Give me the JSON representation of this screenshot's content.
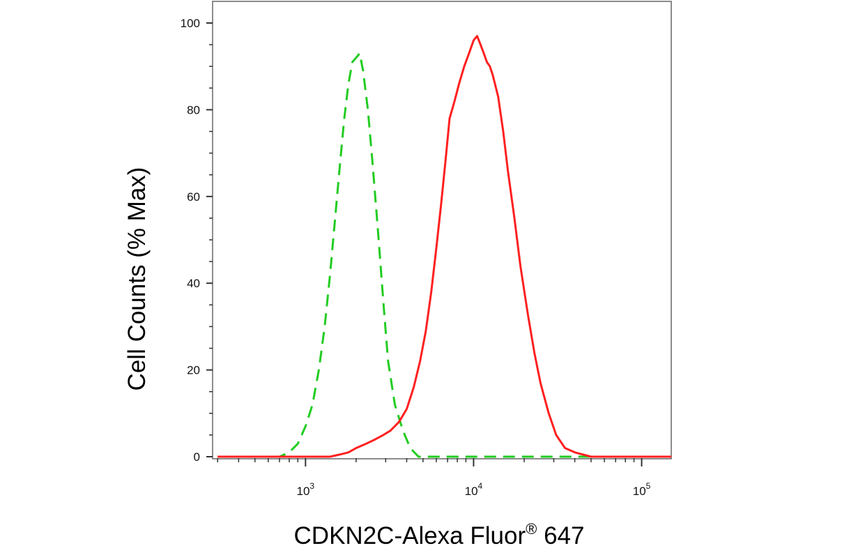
{
  "chart_data": {
    "type": "line",
    "title": "",
    "xlabel": "CDKN2C-Alexa Fluor",
    "xlabel_superscript": "®",
    "xlabel_suffix": " 647",
    "ylabel": "Cell Counts (% Max)",
    "x_scale": "log",
    "xlim": [
      280,
      150000
    ],
    "ylim": [
      0,
      100
    ],
    "y_ticks": [
      0,
      20,
      40,
      60,
      80,
      100
    ],
    "x_ticks": [
      {
        "value": 1000,
        "base": "10",
        "exponent": "3"
      },
      {
        "value": 10000,
        "base": "10",
        "exponent": "4"
      },
      {
        "value": 100000,
        "base": "10",
        "exponent": "5"
      }
    ],
    "grid": false,
    "legend": "none",
    "series": [
      {
        "color": "#22cc22",
        "style": "dashed",
        "points": [
          [
            300,
            0
          ],
          [
            700,
            0
          ],
          [
            800,
            1
          ],
          [
            900,
            3
          ],
          [
            1000,
            7
          ],
          [
            1100,
            12
          ],
          [
            1200,
            20
          ],
          [
            1300,
            30
          ],
          [
            1400,
            42
          ],
          [
            1500,
            55
          ],
          [
            1600,
            67
          ],
          [
            1700,
            78
          ],
          [
            1800,
            86
          ],
          [
            1900,
            91
          ],
          [
            2000,
            92
          ],
          [
            2100,
            93
          ],
          [
            2200,
            89
          ],
          [
            2350,
            80
          ],
          [
            2500,
            68
          ],
          [
            2700,
            52
          ],
          [
            2900,
            36
          ],
          [
            3100,
            22
          ],
          [
            3400,
            12
          ],
          [
            3800,
            6
          ],
          [
            4200,
            2
          ],
          [
            4700,
            0
          ],
          [
            150000,
            0
          ]
        ]
      },
      {
        "color": "#ff2020",
        "style": "solid",
        "points": [
          [
            300,
            0
          ],
          [
            1400,
            0
          ],
          [
            1600,
            0.5
          ],
          [
            1800,
            1
          ],
          [
            2000,
            2
          ],
          [
            2300,
            3
          ],
          [
            2600,
            4
          ],
          [
            2900,
            5
          ],
          [
            3200,
            6
          ],
          [
            3600,
            8
          ],
          [
            4000,
            11
          ],
          [
            4400,
            16
          ],
          [
            4800,
            22
          ],
          [
            5200,
            29
          ],
          [
            5600,
            38
          ],
          [
            6000,
            48
          ],
          [
            6400,
            58
          ],
          [
            6800,
            68
          ],
          [
            7200,
            78
          ],
          [
            7700,
            82
          ],
          [
            8200,
            86
          ],
          [
            8800,
            90
          ],
          [
            9400,
            93
          ],
          [
            10000,
            96
          ],
          [
            10500,
            97
          ],
          [
            11000,
            95
          ],
          [
            11500,
            93
          ],
          [
            12000,
            91
          ],
          [
            12500,
            90
          ],
          [
            13000,
            88
          ],
          [
            14000,
            83
          ],
          [
            15000,
            75
          ],
          [
            16000,
            66
          ],
          [
            17500,
            55
          ],
          [
            19000,
            44
          ],
          [
            21000,
            33
          ],
          [
            23000,
            24
          ],
          [
            25000,
            17
          ],
          [
            28000,
            10
          ],
          [
            31000,
            5
          ],
          [
            35000,
            2
          ],
          [
            40000,
            1
          ],
          [
            50000,
            0
          ],
          [
            150000,
            0
          ]
        ]
      }
    ]
  }
}
